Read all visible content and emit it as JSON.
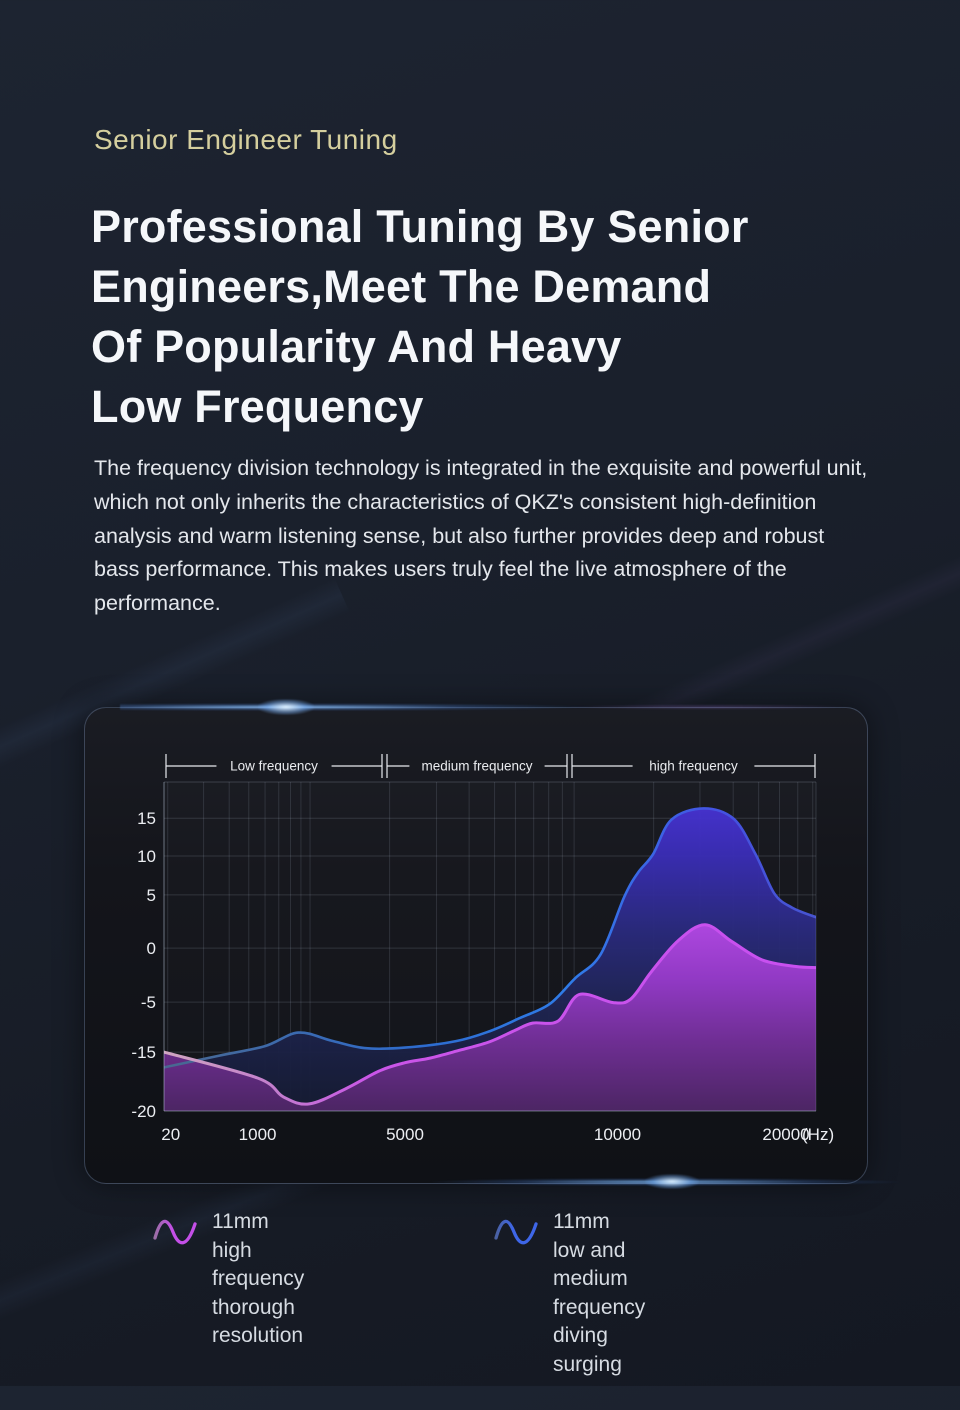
{
  "page": {
    "eyebrow": "Senior Engineer Tuning",
    "heading_lines": [
      "Professional Tuning By Senior",
      "Engineers,Meet The Demand",
      "Of Popularity And Heavy",
      "Low Frequency"
    ],
    "paragraph": "The frequency division technology is integrated in the exquisite and powerful unit, which not only inherits the characteristics of QKZ's consistent high-definition analysis and warm listening sense, but also further provides deep and robust bass performance. This makes users truly feel the live atmosphere of the performance.",
    "colors": {
      "eyebrow": "#d5cf9e",
      "heading": "#f5f7fa",
      "background": "#1a202c",
      "accent_blue": "#2f7ce8",
      "accent_magenta": "#c653e8"
    }
  },
  "chart_data": {
    "type": "area",
    "title": "",
    "x_axis": {
      "ticks": [
        "20",
        "1000",
        "5000",
        "10000",
        "20000"
      ],
      "unit": "(Hz)"
    },
    "y_axis": {
      "ticks": [
        "15",
        "10",
        "5",
        "0",
        "-5",
        "-15",
        "-20"
      ]
    },
    "bands": [
      "Low frequency",
      "medium frequency",
      "high frequency"
    ],
    "grid": true,
    "legend_position": "below",
    "series": [
      {
        "name": "low-and-medium-frequency-driver",
        "legend": "11mm low and medium frequency diving surging",
        "line_color": "#2f7ce8",
        "fill_color": "#3a2db6",
        "points": [
          [
            20,
            -16.3
          ],
          [
            600,
            -15.3
          ],
          [
            1200,
            -13.8
          ],
          [
            2100,
            -11.1
          ],
          [
            3000,
            -12.7
          ],
          [
            3900,
            -14.2
          ],
          [
            5000,
            -14.1
          ],
          [
            6200,
            -12.8
          ],
          [
            7000,
            -10.8
          ],
          [
            7700,
            -8.2
          ],
          [
            8400,
            -5.4
          ],
          [
            9000,
            -2.8
          ],
          [
            9600,
            -0.6
          ],
          [
            10400,
            4.8
          ],
          [
            11200,
            7.8
          ],
          [
            12100,
            10.2
          ],
          [
            13200,
            14.8
          ],
          [
            15100,
            16.3
          ],
          [
            16900,
            14.9
          ],
          [
            18200,
            10.2
          ],
          [
            19300,
            5.2
          ],
          [
            20300,
            3.8
          ],
          [
            21500,
            2.9
          ]
        ]
      },
      {
        "name": "high-frequency-driver",
        "legend": "11mm high frequency thorough resolution",
        "line_color": "#c653e8",
        "fill_color": "#9c3bce",
        "points": [
          [
            20,
            -15.0
          ],
          [
            1000,
            -17.2
          ],
          [
            1700,
            -18.8
          ],
          [
            2400,
            -19.4
          ],
          [
            3400,
            -18.1
          ],
          [
            4300,
            -16.6
          ],
          [
            5000,
            -15.9
          ],
          [
            5600,
            -15.5
          ],
          [
            6300,
            -14.6
          ],
          [
            7000,
            -12.9
          ],
          [
            7600,
            -10.6
          ],
          [
            8000,
            -9.2
          ],
          [
            8600,
            -8.8
          ],
          [
            9100,
            -4.3
          ],
          [
            9900,
            -5.1
          ],
          [
            10800,
            -4.7
          ],
          [
            12000,
            -2.2
          ],
          [
            13600,
            0.7
          ],
          [
            15200,
            2.2
          ],
          [
            16800,
            0.6
          ],
          [
            18600,
            -1.1
          ],
          [
            20500,
            -1.7
          ],
          [
            21500,
            -1.8
          ]
        ]
      }
    ]
  },
  "legend": {
    "items": [
      {
        "icon": "wave-icon",
        "color": "#c44fe8",
        "line1": "11mm high frequency",
        "line2": "thorough resolution"
      },
      {
        "icon": "wave-icon",
        "color": "#3e66e8",
        "line1": "11mm low and medium",
        "line2": "frequency diving surging"
      }
    ]
  }
}
